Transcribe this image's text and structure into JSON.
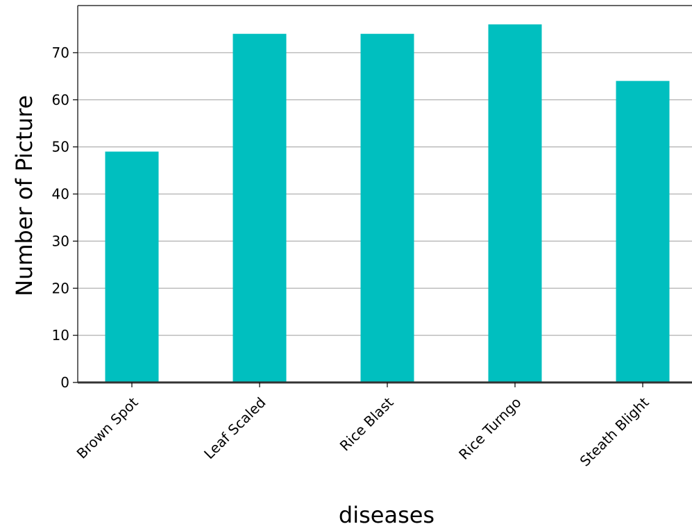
{
  "chart_data": {
    "type": "bar",
    "title": "",
    "xlabel": "diseases",
    "ylabel": "Number of Picture",
    "categories": [
      "Brown Spot",
      "Leaf Scaled",
      "Rice Blast",
      "Rice Turngo",
      "Steath Blight"
    ],
    "values": [
      49,
      74,
      74,
      76,
      64
    ],
    "ylim": [
      0,
      80
    ],
    "yticks": [
      0,
      10,
      20,
      30,
      40,
      50,
      60,
      70
    ],
    "grid": "horizontal",
    "legend": "none",
    "bar_color": "#00BFBF",
    "grid_color": "#b0b0b0",
    "axis_color": "#333333"
  }
}
